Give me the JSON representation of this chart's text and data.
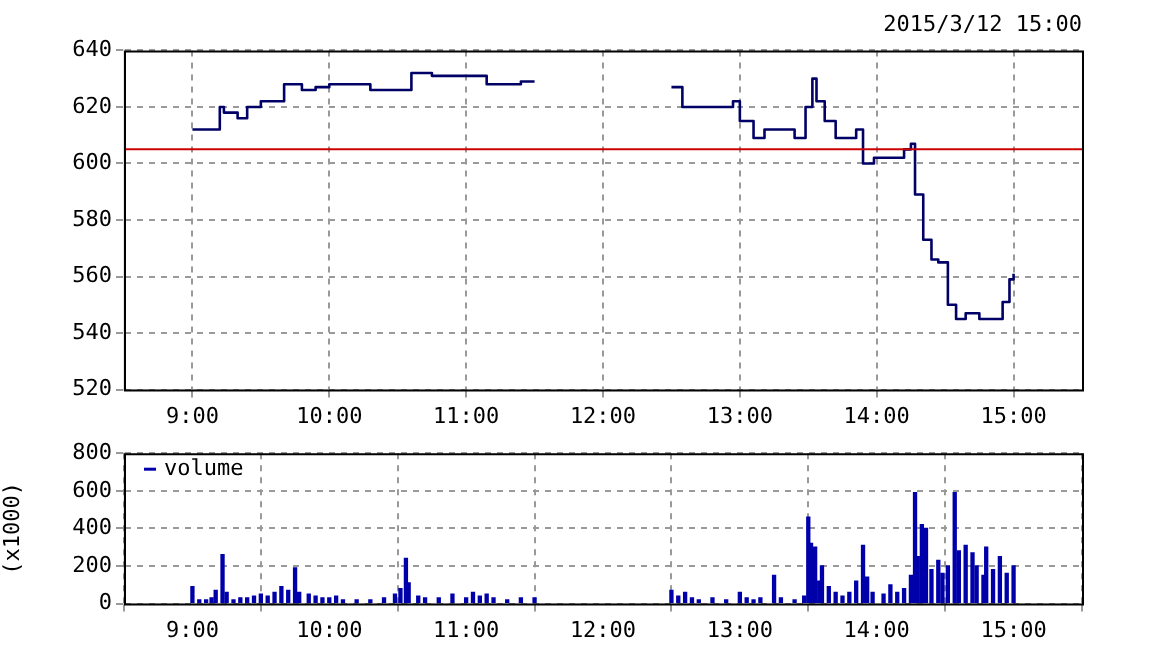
{
  "chart_data": [
    {
      "type": "step",
      "subtitle": "2015/3/12 15:00",
      "color": "#000066",
      "grid": true,
      "legend": false,
      "x": [
        9.0,
        9.2,
        9.23,
        9.33,
        9.4,
        9.5,
        9.67,
        9.8,
        9.9,
        10.0,
        10.3,
        10.6,
        10.75,
        11.0,
        11.15,
        11.25,
        11.4,
        11.5,
        11.51,
        12.5,
        12.58,
        12.95,
        13.0,
        13.1,
        13.18,
        13.4,
        13.48,
        13.53,
        13.56,
        13.62,
        13.7,
        13.85,
        13.9,
        13.98,
        14.2,
        14.25,
        14.28,
        14.34,
        14.4,
        14.45,
        14.52,
        14.58,
        14.65,
        14.75,
        14.85,
        14.92,
        14.97,
        15.0
      ],
      "values": [
        612,
        620,
        618,
        616,
        620,
        622,
        628,
        626,
        627,
        628,
        626,
        632,
        631,
        631,
        628,
        628,
        629,
        629,
        null,
        627,
        620,
        622,
        615,
        609,
        612,
        609,
        620,
        630,
        622,
        615,
        609,
        612,
        600,
        602,
        605,
        607,
        589,
        573,
        566,
        565,
        550,
        545,
        547,
        545,
        545,
        551,
        559,
        561
      ],
      "xlim": [
        8.5,
        15.5
      ],
      "xticks": [
        {
          "value": 9,
          "label": "9:00"
        },
        {
          "value": 10,
          "label": "10:00"
        },
        {
          "value": 11,
          "label": "11:00"
        },
        {
          "value": 12,
          "label": "12:00"
        },
        {
          "value": 13,
          "label": "13:00"
        },
        {
          "value": 14,
          "label": "14:00"
        },
        {
          "value": 15,
          "label": "15:00"
        }
      ],
      "ylim": [
        520,
        640
      ],
      "yticks": [
        520,
        540,
        560,
        580,
        600,
        620,
        640
      ],
      "ref_lines": [
        {
          "axis": "y",
          "value": 605,
          "color": "#cc0000"
        }
      ]
    },
    {
      "type": "bar",
      "ylabel": "(x1000)",
      "grid": true,
      "legend": "top left",
      "series": [
        {
          "name": "volume",
          "color": "#0000aa",
          "x": [
            9.0,
            9.05,
            9.1,
            9.14,
            9.17,
            9.22,
            9.25,
            9.3,
            9.35,
            9.4,
            9.45,
            9.5,
            9.55,
            9.6,
            9.65,
            9.7,
            9.75,
            9.78,
            9.85,
            9.9,
            9.95,
            10.0,
            10.05,
            10.1,
            10.2,
            10.3,
            10.4,
            10.48,
            10.52,
            10.56,
            10.58,
            10.65,
            10.7,
            10.8,
            10.9,
            11.0,
            11.05,
            11.1,
            11.15,
            11.2,
            11.3,
            11.4,
            11.5,
            12.5,
            12.55,
            12.6,
            12.65,
            12.7,
            12.8,
            12.9,
            13.0,
            13.05,
            13.1,
            13.15,
            13.25,
            13.3,
            13.4,
            13.47,
            13.5,
            13.52,
            13.55,
            13.58,
            13.6,
            13.65,
            13.7,
            13.75,
            13.8,
            13.85,
            13.9,
            13.93,
            13.97,
            14.05,
            14.1,
            14.15,
            14.2,
            14.25,
            14.28,
            14.3,
            14.33,
            14.36,
            14.4,
            14.45,
            14.48,
            14.52,
            14.57,
            14.6,
            14.65,
            14.7,
            14.73,
            14.78,
            14.8,
            14.85,
            14.9,
            14.95,
            15.0
          ],
          "values": [
            90,
            20,
            20,
            30,
            70,
            260,
            60,
            20,
            30,
            30,
            40,
            50,
            40,
            60,
            90,
            70,
            190,
            60,
            50,
            40,
            30,
            30,
            40,
            20,
            20,
            20,
            30,
            50,
            80,
            240,
            110,
            40,
            30,
            30,
            50,
            30,
            60,
            40,
            50,
            30,
            20,
            30,
            30,
            70,
            40,
            60,
            30,
            20,
            30,
            20,
            60,
            30,
            20,
            30,
            150,
            30,
            20,
            40,
            460,
            320,
            300,
            120,
            200,
            90,
            60,
            40,
            60,
            120,
            310,
            140,
            60,
            50,
            100,
            60,
            80,
            150,
            590,
            250,
            420,
            400,
            180,
            230,
            160,
            200,
            590,
            280,
            310,
            270,
            200,
            150,
            300,
            180,
            250,
            160,
            200
          ]
        }
      ],
      "xlim": [
        8.5,
        15.5
      ],
      "xticks": [
        {
          "value": 9,
          "label": "9:00"
        },
        {
          "value": 10,
          "label": "10:00"
        },
        {
          "value": 11,
          "label": "11:00"
        },
        {
          "value": 12,
          "label": "12:00"
        },
        {
          "value": 13,
          "label": "13:00"
        },
        {
          "value": 14,
          "label": "14:00"
        },
        {
          "value": 15,
          "label": "15:00"
        }
      ],
      "ylim": [
        0,
        800
      ],
      "yticks": [
        0,
        200,
        400,
        600,
        800
      ]
    }
  ]
}
